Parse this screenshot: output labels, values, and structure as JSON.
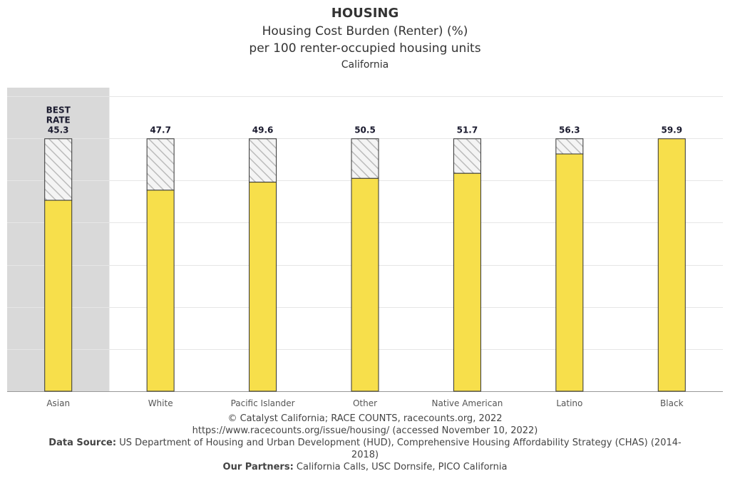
{
  "header": {
    "title": "HOUSING",
    "subtitle": "Housing Cost Burden (Renter) (%)",
    "unit_line": "per 100 renter-occupied housing units",
    "region": "California"
  },
  "chart_data": {
    "type": "bar",
    "categories": [
      "Asian",
      "White",
      "Pacific Islander",
      "Other",
      "Native American",
      "Latino",
      "Black"
    ],
    "values": [
      45.3,
      47.7,
      49.6,
      50.5,
      51.7,
      56.3,
      59.9
    ],
    "value_labels": [
      "45.3",
      "47.7",
      "49.6",
      "50.5",
      "51.7",
      "56.3",
      "59.9"
    ],
    "best_rate_label": [
      "BEST",
      "RATE"
    ],
    "best_index": 0,
    "highlight_band_index": 0,
    "hatched_gap_to": 59.9,
    "ylim": [
      0,
      70
    ],
    "y_gridlines": [
      10,
      20,
      30,
      40,
      50,
      60,
      70
    ],
    "y_tick_labels_visible": false,
    "grid": true,
    "legend": false,
    "colors": {
      "bar": "#f7df4b",
      "bar_stroke": "#333333",
      "hatch": "#bbbbbb",
      "best_band": "#d9d9d9",
      "grid": "#e6e6e6",
      "axis": "#999999",
      "value_label": "#1a1a2e"
    }
  },
  "footer": {
    "copyright": "© Catalyst California; RACE COUNTS, racecounts.org, 2022",
    "url_line": "https://www.racecounts.org/issue/housing/ (accessed November 10, 2022)",
    "source_label": "Data Source:",
    "source_text": "US Department of Housing and Urban Development (HUD), Comprehensive Housing Affordability Strategy (CHAS) (2014-2018)",
    "partners_label": "Our Partners:",
    "partners_text": "California Calls, USC Dornsife, PICO California"
  }
}
